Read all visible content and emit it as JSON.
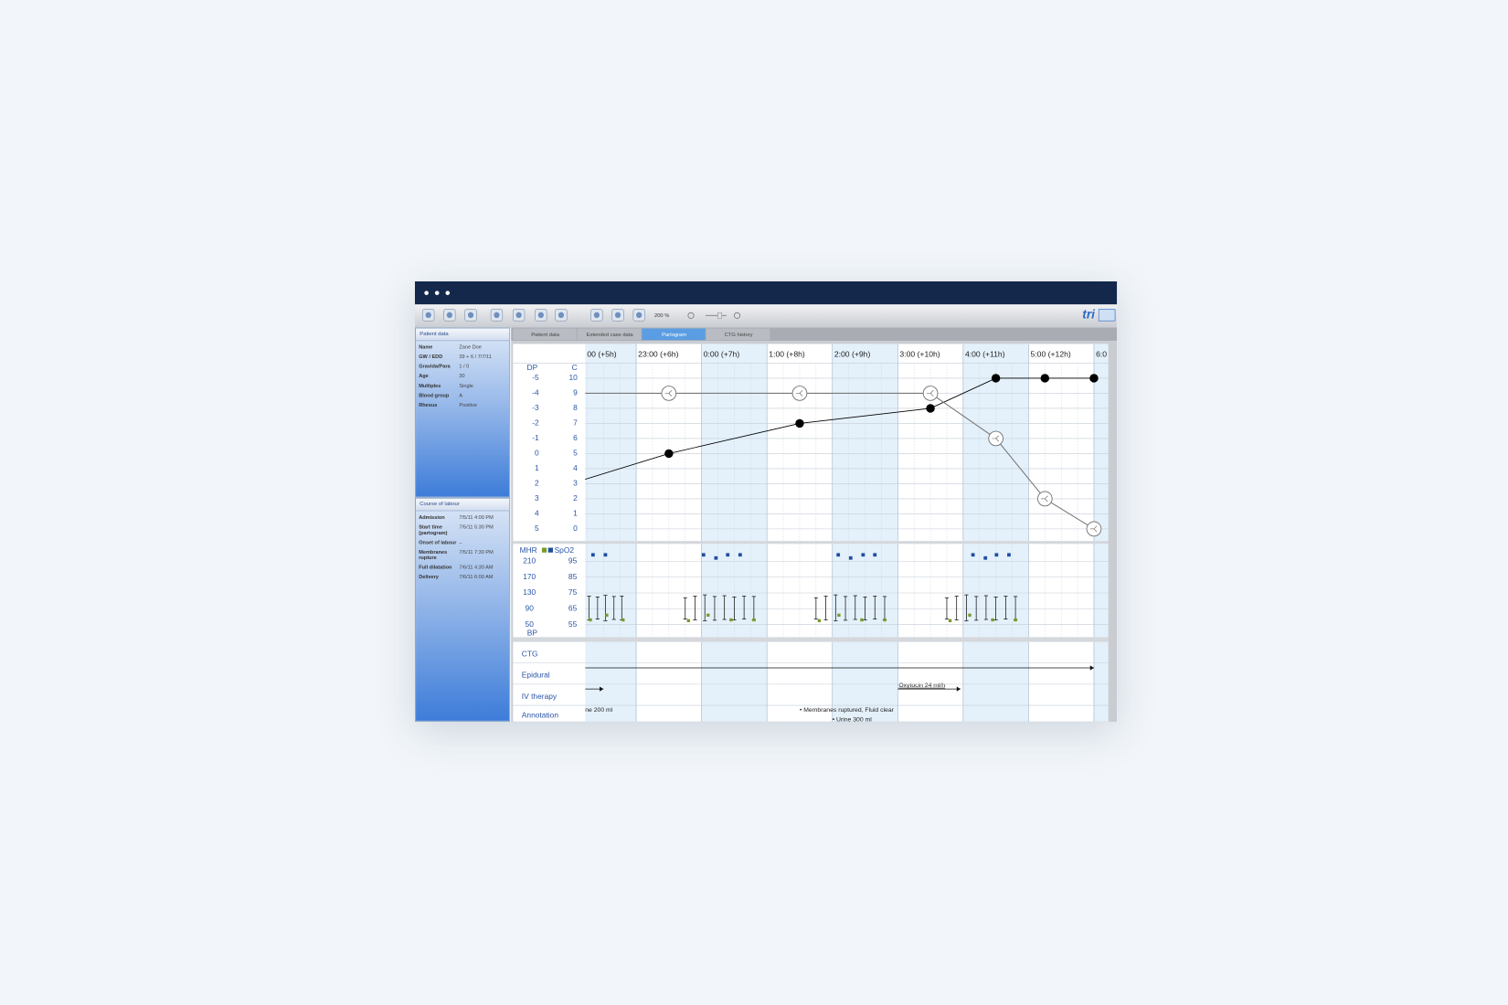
{
  "window": {
    "toolbar": {
      "zoom": "200 %",
      "logo": "tri"
    },
    "tabs": [
      {
        "label": "Patient data",
        "selected": false
      },
      {
        "label": "Extended case data",
        "selected": false
      },
      {
        "label": "Partogram",
        "selected": true
      },
      {
        "label": "CTG history",
        "selected": false
      }
    ]
  },
  "patient_panel": {
    "title": "Patient data",
    "fields": [
      {
        "label": "Name",
        "value": "Zane Doe"
      },
      {
        "label": "GW / EDD",
        "value": "39 + 6 / 7/7/11"
      },
      {
        "label": "Gravida/Para",
        "value": "1 / 0"
      },
      {
        "label": "Age",
        "value": "30"
      },
      {
        "label": "Multiples",
        "value": "Single"
      },
      {
        "label": "Blood group",
        "value": "A"
      },
      {
        "label": "Rhesus",
        "value": "Positive"
      }
    ]
  },
  "labour_panel": {
    "title": "Course of labour",
    "fields": [
      {
        "label": "Admission",
        "value": "7/5/11 4:00 PM"
      },
      {
        "label": "Start time (partogram)",
        "value": "7/5/11 5:30 PM"
      },
      {
        "label": "Onset of labour",
        "value": "–"
      },
      {
        "label": "Membranes rupture",
        "value": "7/5/11 7:30 PM"
      },
      {
        "label": "Full dilatation",
        "value": "7/6/11 4:30 AM"
      },
      {
        "label": "Delivery",
        "value": "7/6/11 6:00 AM"
      }
    ]
  },
  "chart_data": {
    "type": "partogram",
    "xlim": [
      5.22,
      13.22
    ],
    "xticks": [
      {
        "value": 5,
        "label": "00 (+5h)"
      },
      {
        "value": 6,
        "label": "23:00 (+6h)"
      },
      {
        "value": 7,
        "label": "0:00 (+7h)"
      },
      {
        "value": 8,
        "label": "1:00 (+8h)"
      },
      {
        "value": 9,
        "label": "2:00 (+9h)"
      },
      {
        "value": 10,
        "label": "3:00 (+10h)"
      },
      {
        "value": 11,
        "label": "4:00 (+11h)"
      },
      {
        "value": 12,
        "label": "5:00 (+12h)"
      },
      {
        "value": 13,
        "label": "6:0"
      }
    ],
    "y_label": "C",
    "ylim": [
      -0.8,
      11
    ],
    "yticks": [
      10,
      9,
      8,
      7,
      6,
      5,
      4,
      3,
      2,
      1,
      0
    ],
    "y2_label": "DP",
    "y2lim": [
      5.8,
      -6
    ],
    "y2ticks": [
      -5,
      -4,
      -3,
      -2,
      -1,
      0,
      1,
      2,
      3,
      4,
      5
    ],
    "grid": true,
    "series": [
      {
        "color": "#000000",
        "marker": "filled",
        "x": [
          5,
          6.5,
          8.5,
          10.5,
          11.5,
          12.25,
          13
        ],
        "values": [
          3,
          5,
          7,
          8,
          10,
          10,
          10
        ]
      },
      {
        "color": "#777777",
        "marker": "open",
        "axis": "y2",
        "x": [
          5,
          6.5,
          8.5,
          10.5,
          11.5,
          12.25,
          13
        ],
        "values": [
          -4,
          -4,
          -4,
          -4,
          -1,
          3,
          5
        ]
      }
    ],
    "vitals": {
      "mhr_label": "MHR",
      "spo2_label": "SpO2",
      "bp_label": "BP",
      "mhr_lim": [
        18.5,
        249
      ],
      "mhr_ticks": [
        210,
        170,
        130,
        90,
        50
      ],
      "mhr_color": "#7a9a2a",
      "spo2_lim": [
        47.1,
        104.7
      ],
      "spo2_ticks": [
        95,
        85,
        75,
        65,
        55
      ],
      "spo2_color": "#1f4fa0",
      "spo2": {
        "x": [
          5.34,
          5.53,
          7.03,
          7.22,
          7.4,
          7.59,
          9.09,
          9.28,
          9.47,
          9.65,
          11.15,
          11.34,
          11.51,
          11.7
        ],
        "values": [
          99,
          99,
          99,
          97,
          99,
          99,
          99,
          97,
          99,
          99,
          99,
          97,
          99,
          99
        ]
      },
      "bp": {
        "x": [
          5.28,
          5.41,
          5.53,
          5.66,
          5.78,
          6.75,
          6.9,
          7.05,
          7.2,
          7.35,
          7.5,
          7.65,
          7.8,
          8.75,
          8.9,
          9.05,
          9.2,
          9.35,
          9.5,
          9.65,
          9.8,
          10.75,
          10.9,
          11.05,
          11.2,
          11.35,
          11.5,
          11.65,
          11.8
        ],
        "systolic": [
          122,
          120,
          124,
          121,
          122,
          118,
          122,
          125,
          121,
          123,
          120,
          122,
          121,
          118,
          122,
          125,
          121,
          123,
          120,
          122,
          121,
          118,
          122,
          125,
          121,
          123,
          120,
          122,
          121
        ],
        "diastolic": [
          62,
          64,
          60,
          63,
          62,
          64,
          62,
          60,
          61,
          63,
          62,
          64,
          62,
          64,
          62,
          60,
          61,
          63,
          62,
          64,
          62,
          64,
          62,
          60,
          61,
          63,
          62,
          64,
          62
        ]
      },
      "mhr": {
        "x": [
          5.3,
          5.55,
          5.8,
          6.8,
          7.1,
          7.45,
          7.8,
          8.8,
          9.1,
          9.45,
          9.8,
          10.8,
          11.1,
          11.45,
          11.8
        ],
        "values": [
          62,
          74,
          62,
          60,
          74,
          62,
          62,
          60,
          74,
          62,
          62,
          60,
          74,
          62,
          62
        ]
      }
    },
    "rows": {
      "ctg": {
        "label": "CTG"
      },
      "epidural": {
        "label": "Epidural",
        "end": 13
      },
      "iv_therapy": {
        "label": "IV therapy",
        "end": 5.5,
        "items": [
          {
            "label": "Oxytocin 24 ml/h",
            "start": 10,
            "end": 10.96
          }
        ]
      },
      "annotation": {
        "label": "Annotation",
        "items": [
          {
            "label": "ne 200 ml",
            "x": 5.22
          },
          {
            "label": "• Membranes ruptured, Fluid clear",
            "x": 8.5
          },
          {
            "label": "• Urine 300 ml",
            "x": 9
          }
        ]
      }
    }
  }
}
